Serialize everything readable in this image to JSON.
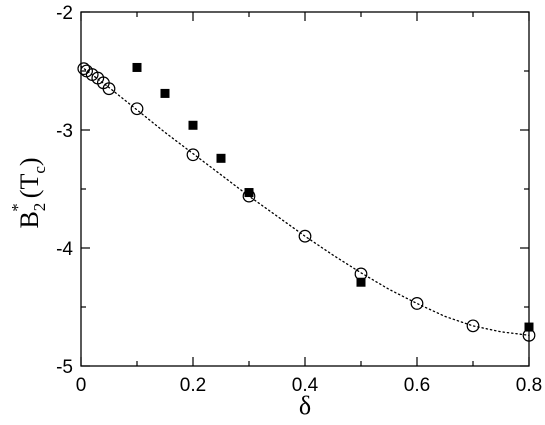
{
  "chart_data": {
    "type": "scatter",
    "xlabel": "δ",
    "ylabel": {
      "base": "B",
      "sub": "2",
      "sup": "*",
      "open": "(T",
      "arg_sub": "c",
      "close": ")"
    },
    "xlim": [
      0,
      0.8
    ],
    "ylim": [
      -5,
      -2
    ],
    "x_ticks": [
      0,
      0.2,
      0.4,
      0.6,
      0.8
    ],
    "x_tick_labels": [
      "0",
      "0.2",
      "0.4",
      "0.6",
      "0.8"
    ],
    "y_ticks": [
      -5,
      -4,
      -3,
      -2
    ],
    "y_tick_labels": [
      "-5",
      "-4",
      "-3",
      "-2"
    ],
    "grid": false,
    "legend": "none",
    "series": [
      {
        "marker": "open-circle",
        "x": [
          0.005,
          0.01,
          0.02,
          0.03,
          0.04,
          0.05,
          0.1,
          0.2,
          0.3,
          0.4,
          0.5,
          0.6,
          0.7,
          0.8
        ],
        "y": [
          -2.48,
          -2.5,
          -2.53,
          -2.56,
          -2.6,
          -2.65,
          -2.82,
          -3.21,
          -3.56,
          -3.9,
          -4.22,
          -4.47,
          -4.66,
          -4.74
        ]
      },
      {
        "marker": "filled-square",
        "x": [
          0.1,
          0.15,
          0.2,
          0.25,
          0.3,
          0.5,
          0.8
        ],
        "y": [
          -2.47,
          -2.69,
          -2.96,
          -3.24,
          -3.53,
          -4.29,
          -4.67
        ]
      },
      {
        "marker": "dotted-line",
        "x": [
          0,
          0.05,
          0.1,
          0.15,
          0.2,
          0.25,
          0.3,
          0.35,
          0.4,
          0.45,
          0.5,
          0.55,
          0.6,
          0.65,
          0.7,
          0.75,
          0.8
        ],
        "y": [
          -2.46,
          -2.64,
          -2.83,
          -3.02,
          -3.2,
          -3.38,
          -3.56,
          -3.73,
          -3.9,
          -4.06,
          -4.21,
          -4.35,
          -4.47,
          -4.58,
          -4.66,
          -4.71,
          -4.74
        ]
      }
    ]
  }
}
